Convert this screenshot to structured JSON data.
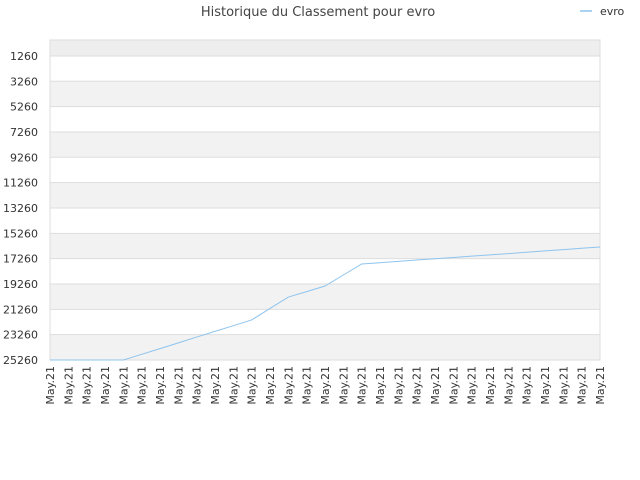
{
  "chart_data": {
    "type": "line",
    "title": "Historique du Classement pour evro",
    "categories": [
      "May.21",
      "May.21",
      "May.21",
      "May.21",
      "May.21",
      "May.21",
      "May.21",
      "May.21",
      "May.21",
      "May.21",
      "May.21",
      "May.21",
      "May.21",
      "May.21",
      "May.21",
      "May.21",
      "May.21",
      "May.21",
      "May.21",
      "May.21",
      "May.21",
      "May.21",
      "May.21",
      "May.21",
      "May.21",
      "May.21",
      "May.21",
      "May.21",
      "May.21",
      "May.21",
      "May.21"
    ],
    "series": [
      {
        "name": "evro",
        "color": "#8ec4ee",
        "values": [
          25260,
          25260,
          25260,
          25260,
          25260,
          24810,
          24360,
          23910,
          23450,
          23000,
          22550,
          22100,
          21190,
          20290,
          19860,
          19420,
          18550,
          17680,
          17580,
          17470,
          17370,
          17270,
          17170,
          17060,
          16960,
          16860,
          16750,
          16650,
          16550,
          16440,
          16340
        ]
      }
    ],
    "ylim": [
      25260,
      0
    ],
    "yticks": [
      1260,
      3260,
      5260,
      7260,
      9260,
      11260,
      13260,
      15260,
      17260,
      19260,
      21260,
      23260,
      25260
    ],
    "grid": true,
    "legend": "top-right"
  }
}
